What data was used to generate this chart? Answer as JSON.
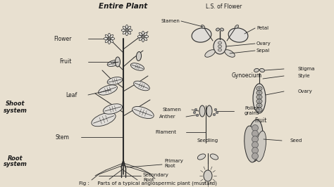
{
  "background_color": "#e8e0d0",
  "text_color": "#1a1a1a",
  "draw_color": "#2a2a2a",
  "figsize": [
    4.74,
    2.66
  ],
  "dpi": 100,
  "title": "Entire Plant",
  "caption": "Fig :     Parts of a typical angiospermic plant (mustard)",
  "labels": {
    "flower": "Flower",
    "fruit_plant": "Fruit",
    "shoot_system": "Shoot\nsystem",
    "leaf": "Leaf",
    "stem": "Stem",
    "root_system": "Root\nsystem",
    "primary_root": "Primary\nRoot",
    "secondary_root": "Secondary\nRoot",
    "ls_flower": "L.S. of Flower",
    "stamen_ls": "Stamen",
    "petal": "Petal",
    "ovary_ls": "Ovary",
    "sepal": "Sepal",
    "gynoecium": "Gynoecium",
    "stamen_detail": "Stamen",
    "anther": "Anther",
    "filament": "Filament",
    "pollen_grains": "Pollen\ngrains",
    "stigma": "Stigma",
    "style": "Style",
    "ovary_gyno": "Ovary",
    "fruit_label": "Fruit",
    "seed": "Seed",
    "seedling": "Seedling"
  }
}
